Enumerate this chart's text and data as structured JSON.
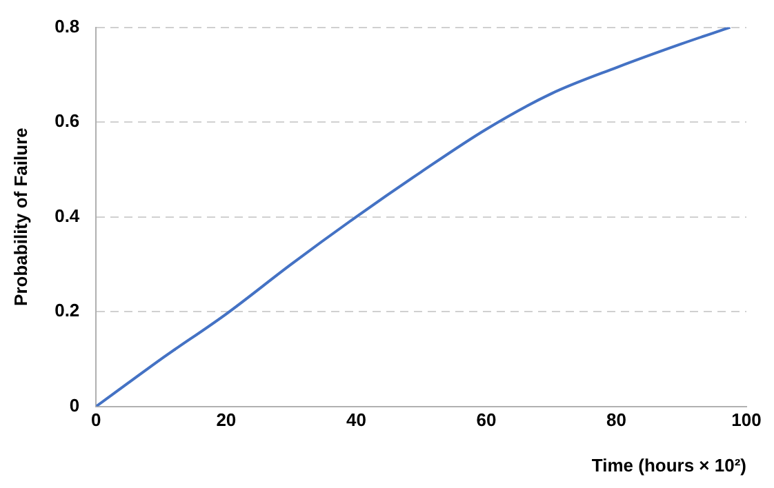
{
  "chart_data": {
    "type": "line",
    "xlabel": "Time (hours × 10²)",
    "ylabel": "Probability of Failure",
    "x": [
      0,
      5,
      10,
      20,
      30,
      40,
      50,
      60,
      70,
      80,
      90,
      97.5
    ],
    "series": [
      {
        "color": "#4472c4",
        "values": [
          0,
          0.05,
          0.1,
          0.195,
          0.3,
          0.4,
          0.495,
          0.585,
          0.66,
          0.715,
          0.765,
          0.8
        ]
      }
    ],
    "xlim": [
      0,
      100
    ],
    "xticks": [
      0,
      20,
      40,
      60,
      80,
      100
    ],
    "ylim": [
      0,
      0.8
    ],
    "yticks": [
      0,
      0.2,
      0.4,
      0.6,
      0.8
    ],
    "grid": "y",
    "legend": false,
    "marker": "none",
    "line_style": "solid"
  }
}
